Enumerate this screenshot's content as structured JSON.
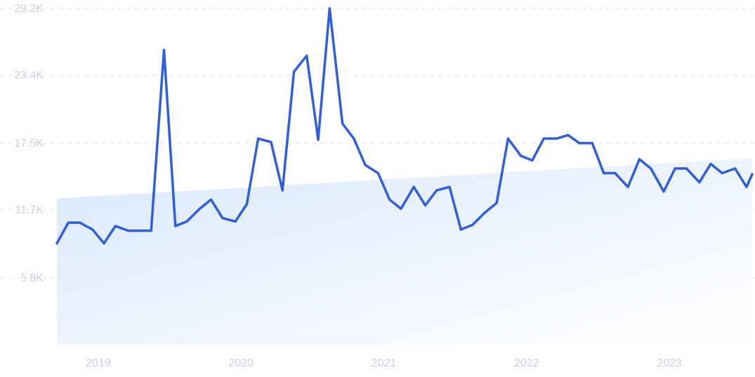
{
  "chart_data": {
    "type": "line",
    "title": "",
    "xlabel": "",
    "ylabel": "",
    "y_ticks": [
      "5.8K",
      "11.7K",
      "17.5K",
      "23.4K",
      "29.2K"
    ],
    "y_tick_values": [
      5800,
      11700,
      17500,
      23400,
      29200
    ],
    "ylim": [
      0,
      29200
    ],
    "x_ticks": [
      "2019",
      "2020",
      "2021",
      "2022",
      "2023"
    ],
    "x_tick_values": [
      2019.17,
      2020.17,
      2021.17,
      2022.17,
      2023.17
    ],
    "xlim": [
      2018.88,
      2023.75
    ],
    "grid": true,
    "line_color": "#2f5fdd",
    "trend_fill_color": "#dbe8fa",
    "trend": {
      "start": 12700,
      "end": 16200
    },
    "series": [
      {
        "x": [
          2018.88,
          2018.96,
          2019.04,
          2019.13,
          2019.21,
          2019.29,
          2019.38,
          2019.46,
          2019.54,
          2019.63,
          2019.71,
          2019.79,
          2019.88,
          2019.96,
          2020.04,
          2020.13,
          2020.21,
          2020.29,
          2020.38,
          2020.46,
          2020.54,
          2020.63,
          2020.71,
          2020.79,
          2020.88,
          2020.96,
          2021.04,
          2021.13,
          2021.21,
          2021.29,
          2021.38,
          2021.46,
          2021.54,
          2021.63,
          2021.71,
          2021.79,
          2021.88,
          2021.96,
          2022.04,
          2022.13,
          2022.21,
          2022.29,
          2022.38,
          2022.46,
          2022.54,
          2022.63,
          2022.71,
          2022.79,
          2022.88,
          2022.96,
          2023.04,
          2023.13,
          2023.21,
          2023.29,
          2023.38,
          2023.46,
          2023.54,
          2023.63,
          2023.71,
          2023.75
        ],
        "values": [
          8800,
          10600,
          10600,
          10000,
          8800,
          10300,
          9900,
          9900,
          9900,
          25600,
          10300,
          10700,
          11800,
          12600,
          11000,
          10700,
          12200,
          17900,
          17600,
          13400,
          23700,
          25100,
          17800,
          29200,
          19200,
          17900,
          15600,
          14900,
          12600,
          11800,
          13700,
          12100,
          13400,
          13700,
          10000,
          10400,
          11500,
          12300,
          17900,
          16400,
          16000,
          17900,
          17900,
          18200,
          17500,
          17500,
          14900,
          14900,
          13700,
          16100,
          15300,
          13300,
          15300,
          15300,
          14100,
          15700,
          14900,
          15300,
          13700,
          14800
        ]
      }
    ]
  }
}
